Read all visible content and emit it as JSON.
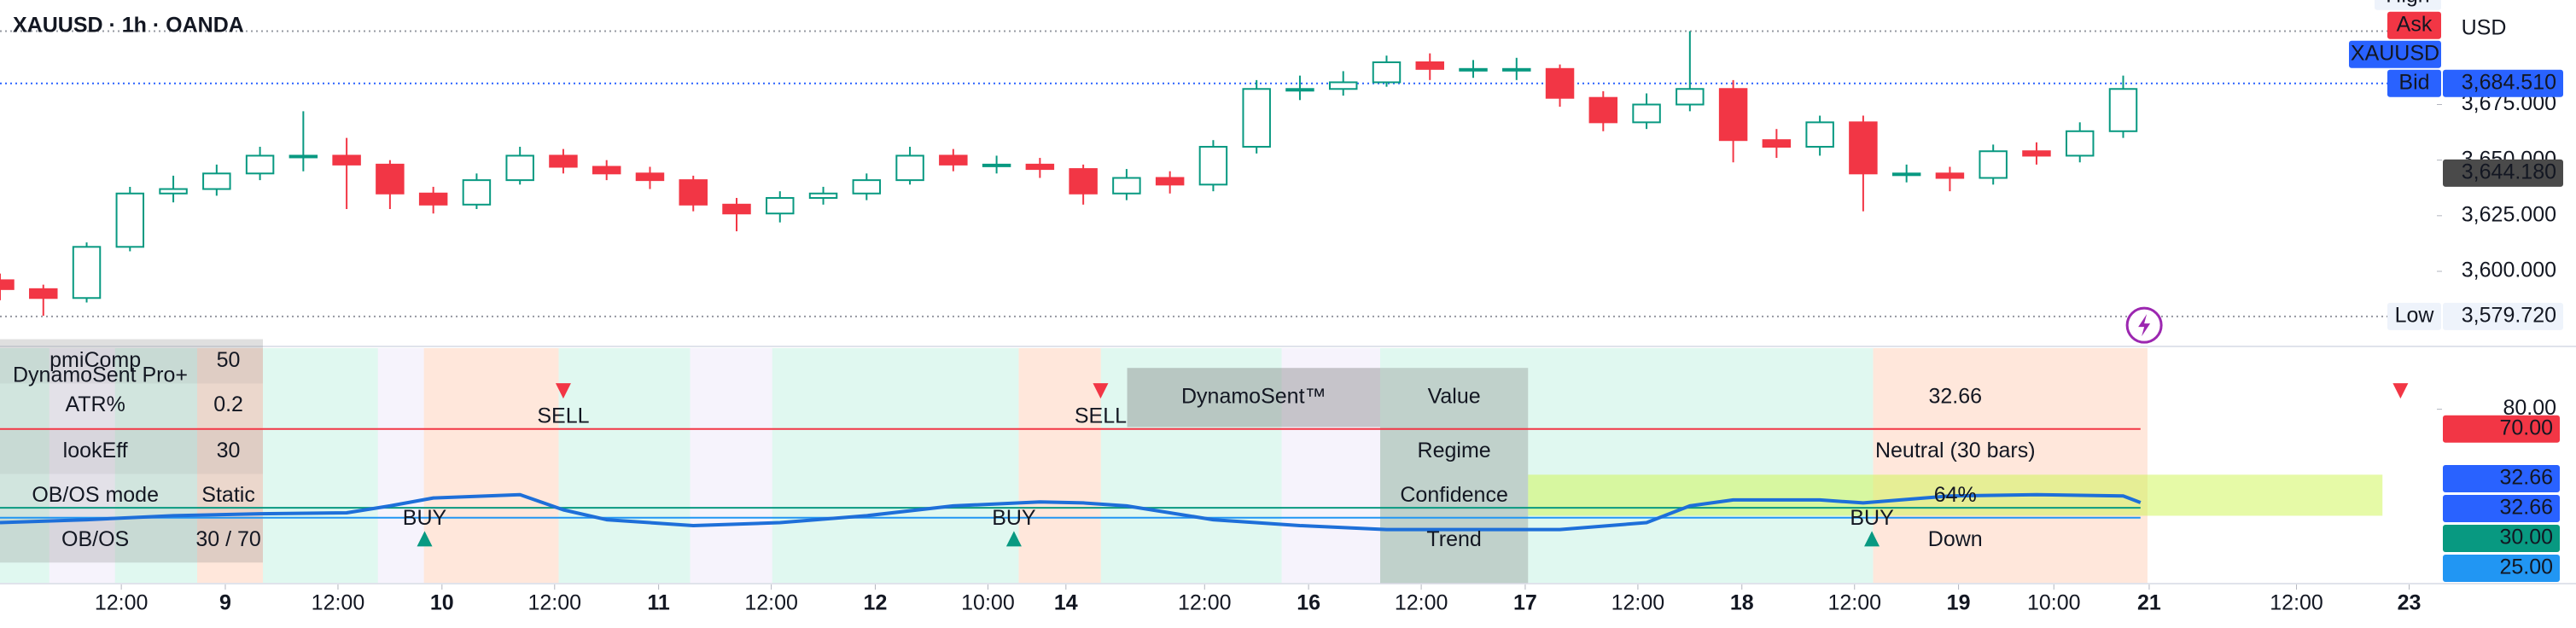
{
  "header": {
    "symbol": "XAUUSD · 1h · OANDA"
  },
  "chart_data": [
    {
      "type": "candlestick",
      "x": [
        0,
        5,
        10,
        15,
        20,
        25,
        30,
        35,
        40,
        45,
        50,
        55,
        60,
        65,
        70,
        75,
        80,
        85,
        90,
        95,
        100,
        105,
        110,
        115,
        120,
        125,
        130,
        135,
        140,
        145,
        150,
        155,
        160,
        165,
        170,
        175,
        180,
        185,
        190,
        195,
        200,
        205,
        210,
        215,
        220,
        225,
        230,
        235,
        240,
        245
      ],
      "open": [
        3596,
        3592,
        3588,
        3611,
        3635,
        3637,
        3644,
        3652,
        3652,
        3648,
        3635,
        3630,
        3641,
        3652,
        3647,
        3644,
        3641,
        3630,
        3626,
        3633,
        3635,
        3641,
        3652,
        3648,
        3648,
        3646,
        3635,
        3642,
        3639,
        3656,
        3682,
        3682,
        3685,
        3694,
        3691,
        3691,
        3691,
        3678,
        3667,
        3675,
        3682,
        3659,
        3656,
        3667,
        3644,
        3644,
        3642,
        3654,
        3652,
        3663
      ],
      "high": [
        3599,
        3594,
        3613,
        3638,
        3643,
        3648,
        3656,
        3672,
        3660,
        3650,
        3638,
        3644,
        3656,
        3655,
        3650,
        3647,
        3643,
        3633,
        3636,
        3638,
        3644,
        3656,
        3655,
        3652,
        3651,
        3648,
        3646,
        3645,
        3659,
        3686,
        3688,
        3690,
        3697,
        3698,
        3695,
        3696,
        3693,
        3681,
        3680,
        3708,
        3686,
        3664,
        3670,
        3670,
        3648,
        3647,
        3657,
        3658,
        3667,
        3688
      ],
      "low": [
        3587,
        3580,
        3586,
        3609,
        3631,
        3634,
        3641,
        3645,
        3628,
        3628,
        3626,
        3628,
        3639,
        3644,
        3641,
        3637,
        3627,
        3618,
        3622,
        3630,
        3632,
        3639,
        3645,
        3644,
        3642,
        3630,
        3632,
        3635,
        3636,
        3653,
        3677,
        3679,
        3683,
        3686,
        3687,
        3686,
        3674,
        3663,
        3664,
        3672,
        3649,
        3651,
        3652,
        3627,
        3640,
        3636,
        3639,
        3648,
        3649,
        3660
      ],
      "close": [
        3592,
        3588,
        3611,
        3635,
        3637,
        3644,
        3652,
        3652,
        3648,
        3635,
        3630,
        3641,
        3652,
        3647,
        3644,
        3641,
        3630,
        3626,
        3633,
        3635,
        3641,
        3652,
        3648,
        3648,
        3646,
        3635,
        3642,
        3639,
        3656,
        3682,
        3682,
        3685,
        3694,
        3691,
        3691,
        3691,
        3678,
        3667,
        3675,
        3682,
        3659,
        3656,
        3667,
        3644,
        3644,
        3642,
        3654,
        3652,
        3663,
        3682
      ],
      "up_color": "#089981",
      "down_color": "#f23645",
      "xlim": [
        0,
        281
      ],
      "xticks": [
        {
          "value": 14,
          "label": "12:00"
        },
        {
          "value": 26,
          "label": "9"
        },
        {
          "value": 39,
          "label": "12:00"
        },
        {
          "value": 51,
          "label": "10"
        },
        {
          "value": 64,
          "label": "12:00"
        },
        {
          "value": 76,
          "label": "11"
        },
        {
          "value": 89,
          "label": "12:00"
        },
        {
          "value": 101,
          "label": "12"
        },
        {
          "value": 114,
          "label": "10:00"
        },
        {
          "value": 123,
          "label": "14"
        },
        {
          "value": 139,
          "label": "12:00"
        },
        {
          "value": 151,
          "label": "16"
        },
        {
          "value": 164,
          "label": "12:00"
        },
        {
          "value": 176,
          "label": "17"
        },
        {
          "value": 189,
          "label": "12:00"
        },
        {
          "value": 201,
          "label": "18"
        },
        {
          "value": 214,
          "label": "12:00"
        },
        {
          "value": 226,
          "label": "19"
        },
        {
          "value": 237,
          "label": "10:00"
        },
        {
          "value": 248,
          "label": "21"
        },
        {
          "value": 265,
          "label": "12:00"
        },
        {
          "value": 278,
          "label": "23"
        }
      ],
      "ylim": [
        3567,
        3722
      ],
      "yticks": [
        {
          "value": 3600,
          "label": "3,600.000"
        },
        {
          "value": 3625,
          "label": "3,625.000"
        },
        {
          "value": 3650,
          "label": "3,650.000"
        },
        {
          "value": 3675,
          "label": "3,675.000"
        }
      ],
      "price_lines": [
        {
          "label": "High",
          "value": 3708,
          "color": "#eef3fb",
          "text_color": "#131722",
          "line_color": "#9598a1"
        },
        {
          "label": "Ask",
          "color": "#f23645",
          "text_color": "#ffffff"
        },
        {
          "label": "XAUUSD",
          "color": "#2962ff",
          "text_color": "#ffffff"
        },
        {
          "label": "Bid",
          "value": 3684.51,
          "value_label": "3,684.510",
          "color": "#2962ff",
          "text_color": "#ffffff",
          "line_color": "#2962ff"
        },
        {
          "value": 3644.18,
          "value_label": "3,644.180",
          "color": "#4a4a4a",
          "text_color": "#ffffff"
        },
        {
          "label": "Low",
          "value": 3579.72,
          "value_label": "3,579.720",
          "color": "#eef3fb",
          "text_color": "#131722",
          "line_color": "#9598a1"
        }
      ],
      "currency": "USD"
    },
    {
      "type": "line",
      "title": "DynamoSent Pro+",
      "x": [
        0,
        10,
        20,
        30,
        40,
        45,
        50,
        60,
        65,
        70,
        80,
        90,
        100,
        110,
        120,
        125,
        130,
        140,
        150,
        160,
        170,
        180,
        190,
        195,
        200,
        210,
        215,
        225,
        235,
        245,
        247
      ],
      "series": [
        {
          "color": "#1e6fd9",
          "values": [
            22.5,
            24,
            26,
            27,
            27.5,
            31,
            35,
            36.7,
            29,
            24,
            21,
            22.5,
            26,
            31,
            33,
            32.5,
            31,
            24,
            21,
            19,
            19,
            19,
            22.5,
            31,
            34,
            34,
            32.5,
            36,
            36.7,
            36,
            32.66
          ]
        }
      ],
      "xlim": [
        0,
        281
      ],
      "ylim": [
        -8,
        111
      ],
      "yticks": [
        {
          "value": 80,
          "label": "80.00"
        }
      ],
      "levels": [
        {
          "value": 70,
          "label": "70.00",
          "color": "#f23645"
        },
        {
          "value": 30,
          "label": "30.00",
          "color": "#089981"
        },
        {
          "value": 25,
          "label": "25.00",
          "color": "#2196f3"
        }
      ],
      "last_labels": [
        {
          "value": 32.66,
          "label": "32.66",
          "color": "#2962ff"
        },
        {
          "value": 32.66,
          "label": "32.66",
          "color": "#2962ff"
        }
      ],
      "signals": [
        {
          "label": "BUY",
          "x": 49,
          "direction": "up",
          "color": "#089981"
        },
        {
          "label": "SELL",
          "x": 65,
          "direction": "down",
          "color": "#f23645"
        },
        {
          "label": "BUY",
          "x": 117,
          "direction": "up",
          "color": "#089981"
        },
        {
          "label": "SELL",
          "x": 127,
          "direction": "down",
          "color": "#f23645"
        },
        {
          "label": "BUY",
          "x": 216,
          "direction": "up",
          "color": "#089981"
        },
        {
          "x": 277,
          "direction": "down",
          "color": "#f23645"
        }
      ],
      "settings_table": {
        "rows": [
          [
            "pmiComp",
            50
          ],
          [
            "ATR%",
            0.2
          ],
          [
            "lookEff",
            30
          ],
          [
            "OB/OS mode",
            "Static"
          ],
          [
            "OB/OS",
            "30 / 70"
          ]
        ]
      },
      "info_table": {
        "title": "DynamoSent™",
        "rows": [
          {
            "label": "Value",
            "value": 32.66,
            "color": "#22ab94"
          },
          {
            "label": "Regime",
            "value": "Neutral (30 bars)",
            "color": "#f7931a"
          },
          {
            "label": "Confidence",
            "value": "64%",
            "color": "#131722"
          },
          {
            "label": "Trend",
            "value": "Down",
            "color": "#f23645"
          }
        ]
      }
    }
  ]
}
